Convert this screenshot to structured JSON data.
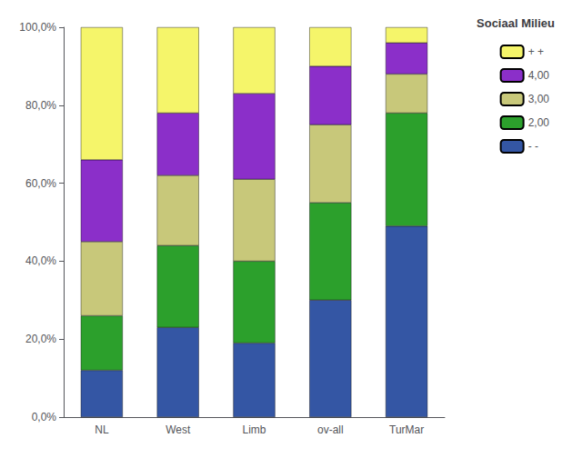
{
  "chart_data": {
    "type": "bar",
    "stacked": true,
    "categories": [
      "NL",
      "West",
      "Limb",
      "ov-all",
      "TurMar"
    ],
    "series": [
      {
        "name": "- -",
        "color": "#3456a4",
        "values": [
          12,
          23,
          19,
          30,
          49
        ]
      },
      {
        "name": "2,00",
        "color": "#2ca02c",
        "values": [
          14,
          21,
          21,
          25,
          29
        ]
      },
      {
        "name": "3,00",
        "color": "#c8c87a",
        "values": [
          19,
          18,
          21,
          20,
          10
        ]
      },
      {
        "name": "4,00",
        "color": "#8b2fc9",
        "values": [
          21,
          16,
          22,
          15,
          8
        ]
      },
      {
        "name": "+ +",
        "color": "#f5f56a",
        "values": [
          34,
          22,
          17,
          10,
          4
        ]
      }
    ],
    "legend_title": "Sociaal Milieu",
    "legend": "right",
    "ylim": [
      0,
      100
    ],
    "yticks": [
      {
        "value": 0,
        "label": "0,0%"
      },
      {
        "value": 20,
        "label": "20,0%"
      },
      {
        "value": 40,
        "label": "40,0%"
      },
      {
        "value": 60,
        "label": "60,0%"
      },
      {
        "value": 80,
        "label": "80,0%"
      },
      {
        "value": 100,
        "label": "100,0%"
      }
    ],
    "grid": false
  }
}
